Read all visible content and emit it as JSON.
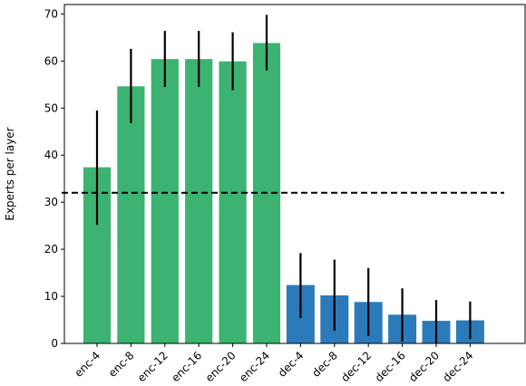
{
  "chart_data": {
    "type": "bar",
    "title": "",
    "xlabel": "",
    "ylabel": "Experts per layer",
    "ylim": [
      0,
      72
    ],
    "yticks": [
      0,
      10,
      20,
      30,
      40,
      50,
      60,
      70
    ],
    "grid": false,
    "legend": "none",
    "categories": [
      "enc-4",
      "enc-8",
      "enc-12",
      "enc-16",
      "enc-20",
      "enc-24",
      "dec-4",
      "dec-8",
      "dec-12",
      "dec-16",
      "dec-20",
      "dec-24"
    ],
    "values": [
      37.5,
      54.7,
      60.5,
      60.5,
      60.0,
      63.9,
      12.4,
      10.2,
      8.8,
      6.1,
      4.8,
      4.9
    ],
    "error_low": [
      25.2,
      46.8,
      54.5,
      54.5,
      53.8,
      58.0,
      5.4,
      2.7,
      1.6,
      0.4,
      0.0,
      0.9
    ],
    "error_high": [
      49.5,
      62.6,
      66.4,
      66.4,
      66.1,
      69.8,
      19.2,
      17.8,
      16.0,
      11.7,
      9.2,
      8.9
    ],
    "bar_colors": [
      "#3cb371",
      "#3cb371",
      "#3cb371",
      "#3cb371",
      "#3cb371",
      "#3cb371",
      "#2b7bba",
      "#2b7bba",
      "#2b7bba",
      "#2b7bba",
      "#2b7bba",
      "#2b7bba"
    ],
    "reference_line": {
      "y": 32,
      "style": "dashed",
      "color": "#000000"
    }
  }
}
